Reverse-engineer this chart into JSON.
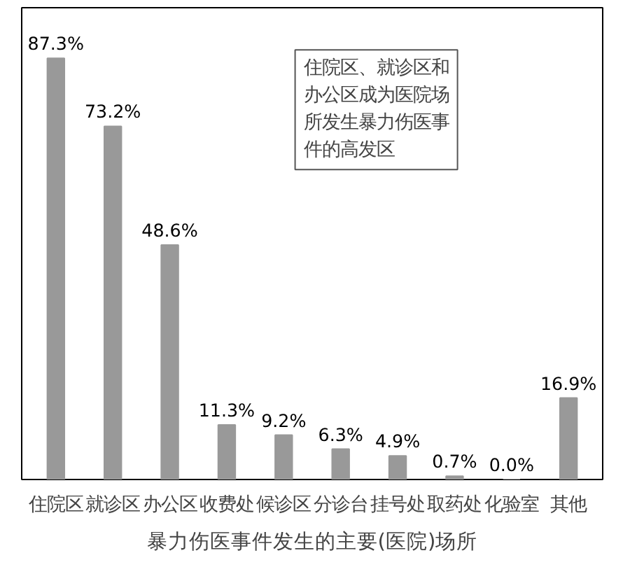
{
  "chart_data": {
    "type": "bar",
    "title": "暴力伤医事件发生的主要(医院)场所",
    "categories": [
      "住院区",
      "就诊区",
      "办公区",
      "收费处",
      "候诊区",
      "分诊台",
      "挂号处",
      "取药处",
      "化验室",
      "其他"
    ],
    "values": [
      87.3,
      73.2,
      48.6,
      11.3,
      9.2,
      6.3,
      4.9,
      0.7,
      0.0,
      16.9
    ],
    "value_labels": [
      "87.3%",
      "73.2%",
      "48.6%",
      "11.3%",
      "9.2%",
      "6.3%",
      "4.9%",
      "0.7%",
      "0.0%",
      "16.9%"
    ],
    "color": "#999999",
    "grid": false,
    "annotations": [
      "住院区、就诊区和办公区成为医院场所发生暴力伤医事件的高发区"
    ]
  }
}
